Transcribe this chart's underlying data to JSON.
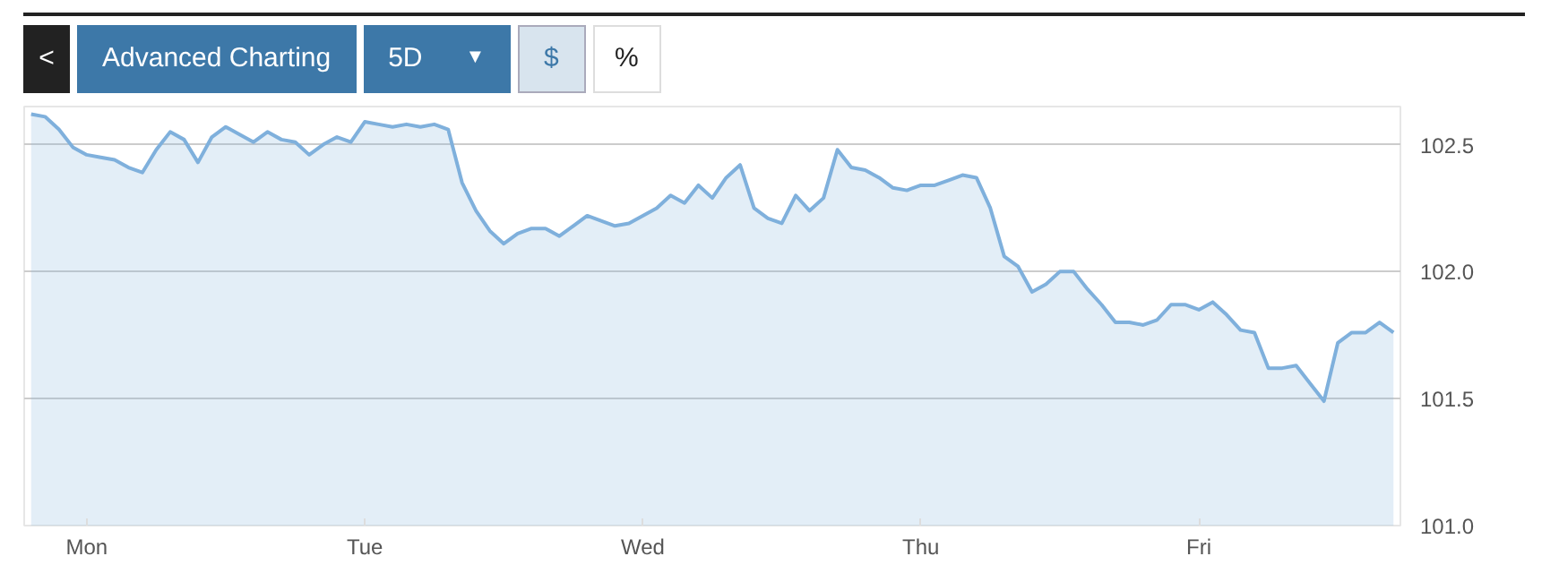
{
  "chart_data": {
    "type": "area",
    "annotations": [
      "<",
      "Advanced Charting",
      "5D",
      "▼",
      "$",
      "%"
    ],
    "categories": [
      null,
      null,
      null,
      null,
      "Mon",
      null,
      null,
      null,
      null,
      null,
      null,
      null,
      null,
      null,
      null,
      null,
      null,
      null,
      null,
      null,
      null,
      null,
      null,
      null,
      "Tue",
      null,
      null,
      null,
      null,
      null,
      null,
      null,
      null,
      null,
      null,
      null,
      null,
      null,
      null,
      null,
      null,
      null,
      null,
      null,
      "Wed",
      null,
      null,
      null,
      null,
      null,
      null,
      null,
      null,
      null,
      null,
      null,
      null,
      null,
      null,
      null,
      null,
      null,
      null,
      null,
      "Thu",
      null,
      null,
      null,
      null,
      null,
      null,
      null,
      null,
      null,
      null,
      null,
      null,
      null,
      null,
      null,
      null,
      null,
      null,
      null,
      "Fri",
      null,
      null,
      null,
      null,
      null,
      null,
      null,
      null,
      null,
      null,
      null,
      null,
      null,
      null
    ],
    "series": [
      {
        "color": "#7fb0dc",
        "values": [
          102.62,
          102.61,
          102.56,
          102.49,
          102.46,
          102.45,
          102.44,
          102.41,
          102.39,
          102.48,
          102.55,
          102.52,
          102.43,
          102.53,
          102.57,
          102.54,
          102.51,
          102.55,
          102.52,
          102.51,
          102.46,
          102.5,
          102.53,
          102.51,
          102.59,
          102.58,
          102.57,
          102.58,
          102.57,
          102.58,
          102.56,
          102.35,
          102.24,
          102.16,
          102.11,
          102.15,
          102.17,
          102.17,
          102.14,
          102.18,
          102.22,
          102.2,
          102.18,
          102.19,
          102.22,
          102.25,
          102.3,
          102.27,
          102.34,
          102.29,
          102.37,
          102.42,
          102.25,
          102.21,
          102.19,
          102.3,
          102.24,
          102.29,
          102.48,
          102.41,
          102.4,
          102.37,
          102.33,
          102.32,
          102.34,
          102.34,
          102.36,
          102.38,
          102.37,
          102.25,
          102.06,
          102.02,
          101.92,
          101.95,
          102.0,
          102.0,
          101.93,
          101.87,
          101.8,
          101.8,
          101.79,
          101.81,
          101.87,
          101.87,
          101.85,
          101.88,
          101.83,
          101.77,
          101.76,
          101.62,
          101.62,
          101.63,
          101.56,
          101.49,
          101.72,
          101.76,
          101.76,
          101.8,
          101.76
        ]
      }
    ],
    "ylim": [
      101.0,
      102.65
    ],
    "yticks": [
      {
        "value": 101.0,
        "label": "101.0"
      },
      {
        "value": 101.5,
        "label": "101.5"
      },
      {
        "value": 102.0,
        "label": "102.0"
      },
      {
        "value": 102.5,
        "label": "102.5"
      }
    ],
    "grid": "y",
    "marker": "none",
    "line_style": "solid"
  }
}
